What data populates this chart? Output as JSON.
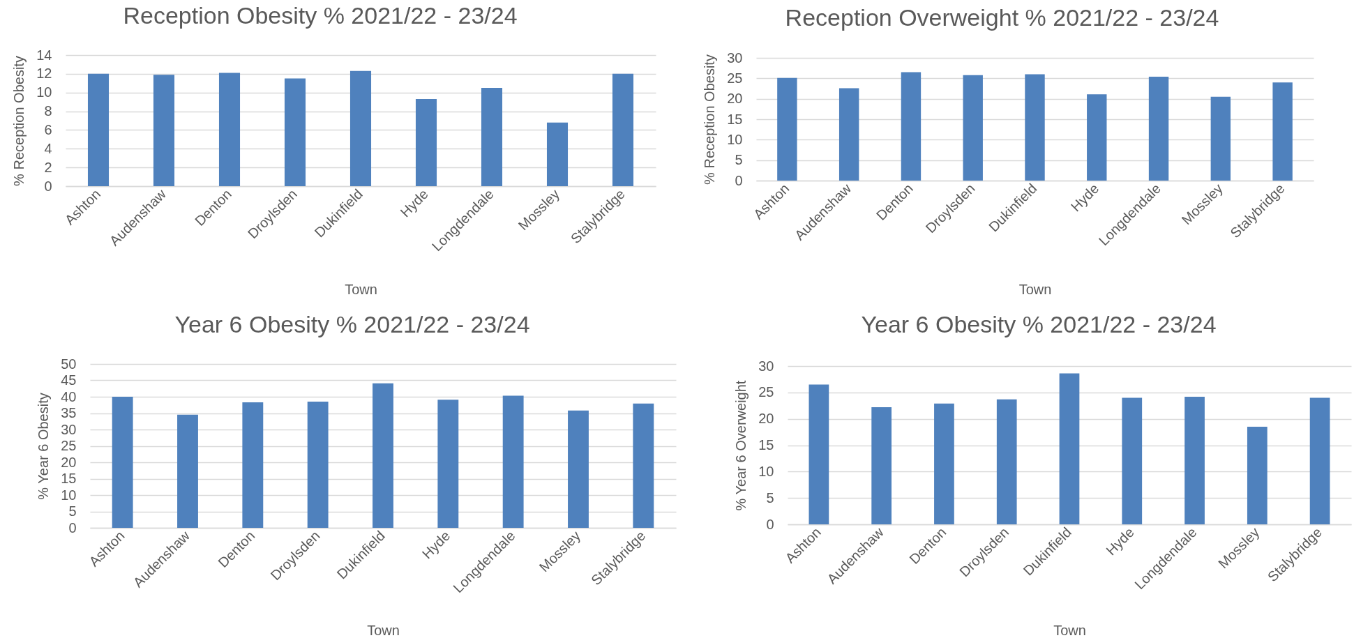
{
  "chart_data": [
    {
      "type": "bar",
      "title": "Reception Obesity % 2021/22 - 23/24",
      "xlabel": "Town",
      "ylabel": "% Reception Obesity",
      "categories": [
        "Ashton",
        "Audenshaw",
        "Denton",
        "Droylsden",
        "Dukinfield",
        "Hyde",
        "Longdendale",
        "Mossley",
        "Stalybridge"
      ],
      "values": [
        12.0,
        11.9,
        12.1,
        11.5,
        12.3,
        9.3,
        10.5,
        6.8,
        12.0
      ],
      "color": "#4f81bd",
      "ylim": [
        0,
        14
      ],
      "yticks": [
        0,
        2,
        4,
        6,
        8,
        10,
        12,
        14
      ],
      "grid": "y"
    },
    {
      "type": "bar",
      "title": "Reception Overweight % 2021/22 - 23/24",
      "xlabel": "Town",
      "ylabel": "% Reception Obesity",
      "categories": [
        "Ashton",
        "Audenshaw",
        "Denton",
        "Droylsden",
        "Dukinfield",
        "Hyde",
        "Longdendale",
        "Mossley",
        "Stalybridge"
      ],
      "values": [
        25.1,
        22.6,
        26.5,
        25.8,
        26.0,
        21.1,
        25.4,
        20.5,
        24.0
      ],
      "color": "#4f81bd",
      "ylim": [
        0,
        30
      ],
      "yticks": [
        0,
        5,
        10,
        15,
        20,
        25,
        30
      ],
      "grid": "y"
    },
    {
      "type": "bar",
      "title": "Year 6 Obesity % 2021/22 - 23/24",
      "xlabel": "Town",
      "ylabel": "% Year 6 Obesity",
      "categories": [
        "Ashton",
        "Audenshaw",
        "Denton",
        "Droylsden",
        "Dukinfield",
        "Hyde",
        "Longdendale",
        "Mossley",
        "Stalybridge"
      ],
      "values": [
        40.0,
        34.5,
        38.3,
        38.5,
        44.1,
        39.1,
        40.3,
        35.8,
        37.9
      ],
      "color": "#4f81bd",
      "ylim": [
        0,
        50
      ],
      "yticks": [
        0,
        5,
        10,
        15,
        20,
        25,
        30,
        35,
        40,
        45,
        50
      ],
      "grid": "y"
    },
    {
      "type": "bar",
      "title": "Year 6 Obesity % 2021/22 - 23/24",
      "xlabel": "Town",
      "ylabel": "% Year 6 Overweight",
      "categories": [
        "Ashton",
        "Audenshaw",
        "Denton",
        "Droylsden",
        "Dukinfield",
        "Hyde",
        "Longdendale",
        "Mossley",
        "Stalybridge"
      ],
      "values": [
        26.5,
        22.2,
        22.9,
        23.7,
        28.6,
        24.0,
        24.2,
        18.5,
        24.0
      ],
      "color": "#4f81bd",
      "ylim": [
        0,
        30
      ],
      "yticks": [
        0,
        5,
        10,
        15,
        20,
        25,
        30
      ],
      "grid": "y"
    }
  ]
}
